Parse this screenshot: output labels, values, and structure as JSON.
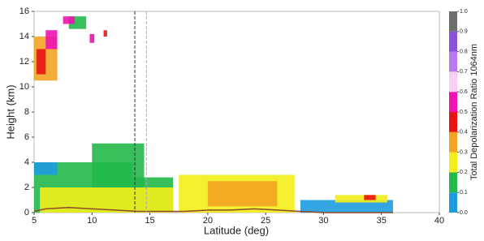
{
  "chart_data": {
    "type": "curtain",
    "x_label": "Latitude (deg)",
    "y_label": "Height (km)",
    "xlim": [
      5,
      40
    ],
    "xticks": [
      5,
      10,
      15,
      20,
      25,
      30,
      35,
      40
    ],
    "ylim": [
      0,
      16
    ],
    "yticks": [
      0,
      2,
      4,
      6,
      8,
      10,
      12,
      14,
      16
    ],
    "colorbar": {
      "label": "Total Depolarization Ratio 1064nm",
      "lim": [
        0,
        1
      ],
      "ticks": [
        {
          "value": 0,
          "label": "0.0"
        },
        0.1,
        0.2,
        0.3,
        0.4,
        0.5,
        0.6,
        0.7,
        0.8,
        0.9,
        {
          "value": 1,
          "label": "1.0"
        }
      ],
      "colors": [
        "#1e9be0",
        "#22b84a",
        "#f2ee1a",
        "#f2a422",
        "#e81414",
        "#f012b4",
        "#f8cff2",
        "#b878f2",
        "#8a52d8",
        "#6e6e6e"
      ]
    },
    "cells": [
      {
        "x": [
          5,
          13.5
        ],
        "y": [
          0,
          4
        ],
        "value": 0.15
      },
      {
        "x": [
          13.5,
          17
        ],
        "y": [
          0,
          2.8
        ],
        "value": 0.15
      },
      {
        "x": [
          10,
          14.5
        ],
        "y": [
          2,
          5.5
        ],
        "value": 0.15
      },
      {
        "x": [
          5,
          7
        ],
        "y": [
          3,
          4
        ],
        "value": 0.05
      },
      {
        "x": [
          5.5,
          17
        ],
        "y": [
          0,
          2
        ],
        "value": 0.25
      },
      {
        "x": [
          17.5,
          27.5
        ],
        "y": [
          0,
          3
        ],
        "value": 0.25
      },
      {
        "x": [
          20,
          26
        ],
        "y": [
          0.5,
          2.5
        ],
        "value": 0.35
      },
      {
        "x": [
          28,
          36
        ],
        "y": [
          0,
          1
        ],
        "value": 0.05
      },
      {
        "x": [
          31,
          35.5
        ],
        "y": [
          0.8,
          1.4
        ],
        "value": 0.25
      },
      {
        "x": [
          33.5,
          34.5
        ],
        "y": [
          1,
          1.4
        ],
        "value": 0.45
      },
      {
        "x": [
          5,
          7
        ],
        "y": [
          10.5,
          14
        ],
        "value": 0.35
      },
      {
        "x": [
          5.2,
          6
        ],
        "y": [
          11,
          13
        ],
        "value": 0.45
      },
      {
        "x": [
          6,
          7
        ],
        "y": [
          13,
          14.5
        ],
        "value": 0.55
      },
      {
        "x": [
          8,
          9.5
        ],
        "y": [
          14.6,
          15.6
        ],
        "value": 0.15
      },
      {
        "x": [
          7.5,
          8.5
        ],
        "y": [
          15,
          15.6
        ],
        "value": 0.55
      },
      {
        "x": [
          9.8,
          10.2
        ],
        "y": [
          13.5,
          14.2
        ],
        "value": 0.55
      },
      {
        "x": [
          11,
          11.3
        ],
        "y": [
          14,
          14.5
        ],
        "value": 0.45
      }
    ],
    "surface": {
      "color": "#8b4a2a",
      "x": [
        5,
        6,
        8,
        10,
        12,
        14,
        16,
        18,
        20,
        22,
        24,
        26,
        28,
        30,
        32,
        35,
        36
      ],
      "y": [
        0.1,
        0.3,
        0.4,
        0.3,
        0.2,
        0.1,
        0.1,
        0.1,
        0.2,
        0.2,
        0.3,
        0.2,
        0.1,
        0,
        0,
        0,
        0
      ]
    },
    "markers": [
      {
        "x": 13.7,
        "color": "#333333"
      },
      {
        "x": 14.7,
        "color": "#aaaaaa"
      }
    ]
  }
}
